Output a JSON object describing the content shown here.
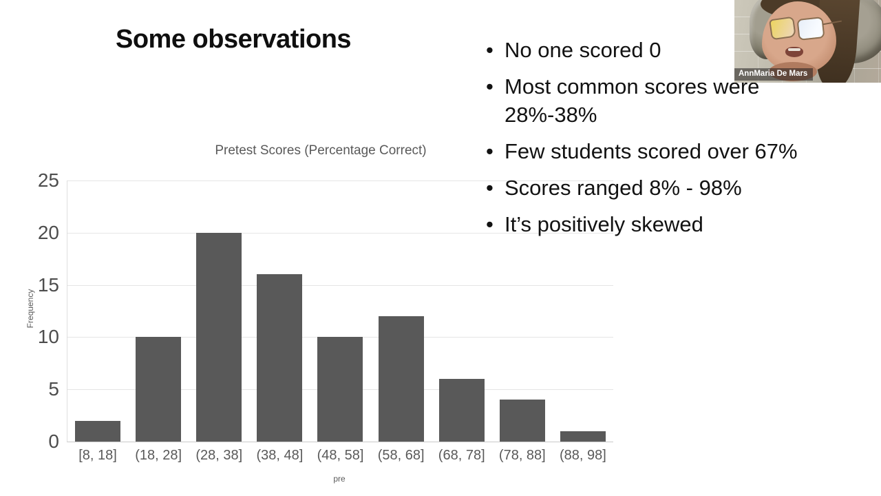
{
  "slide": {
    "title": "Some observations",
    "bullet_marker": "•",
    "bullets": [
      "No one scored 0",
      "Most common scores were 28%-38%",
      "Few students scored over 67%",
      "Scores ranged 8% - 98%",
      "It’s positively skewed"
    ]
  },
  "chart_data": {
    "type": "bar",
    "title": "Pretest Scores (Percentage Correct)",
    "xlabel": "pre",
    "ylabel": "Frequency",
    "categories": [
      "[8, 18]",
      "(18, 28]",
      "(28, 38]",
      "(38, 48]",
      "(48, 58]",
      "(58, 68]",
      "(68, 78]",
      "(78, 88]",
      "(88, 98]"
    ],
    "values": [
      2,
      10,
      20,
      16,
      10,
      12,
      6,
      4,
      1
    ],
    "ylim": [
      0,
      25
    ],
    "yticks": [
      0,
      5,
      10,
      15,
      20,
      25
    ],
    "grid": true,
    "legend": "none",
    "bar_color": "#595959"
  },
  "webcam": {
    "participant_name": "AnnMaria De Mars"
  },
  "colors": {
    "background": "#ffffff",
    "title_text": "#0f0f0f",
    "bullet_text": "#121212",
    "chart_text": "#595959",
    "axis_tick_text": "#4d4d4d",
    "bar": "#595959",
    "gridline": "#e5e5e5"
  }
}
